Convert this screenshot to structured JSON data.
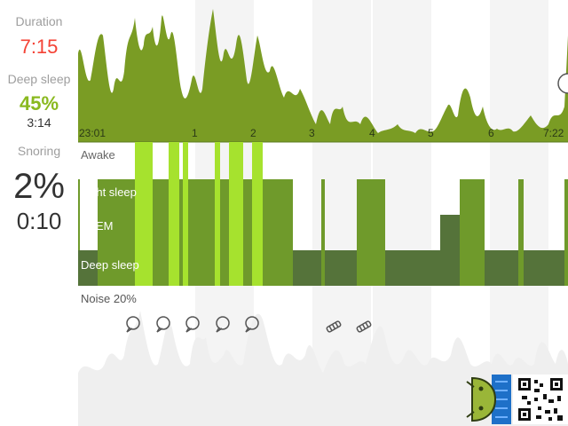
{
  "stats": {
    "duration_label": "Duration",
    "duration_value": "7:15",
    "deep_sleep_label": "Deep sleep",
    "deep_sleep_percent": "45%",
    "deep_sleep_time": "3:14",
    "snoring_label": "Snoring",
    "snoring_percent": "2%",
    "snoring_time": "0:10"
  },
  "time_axis": {
    "start": "23:01",
    "end": "7:22",
    "hours": [
      "1",
      "2",
      "3",
      "4",
      "5",
      "6"
    ]
  },
  "stage_labels": {
    "awake": "Awake",
    "light": "Light sleep",
    "rem": "~REM",
    "deep": "Deep sleep"
  },
  "noise": {
    "label": "Noise 20%",
    "talk_icon_count": 5,
    "snore_icon_count": 2
  },
  "colors": {
    "duration": "#f44336",
    "deep_sleep": "#8ab91f",
    "movement": "#7a9c24",
    "light_sleep": "#6f9a2b",
    "deep_sleep_bar": "#55733a",
    "awake": "#a6e22e",
    "noise": "#efefef",
    "snoring_text": "#333333"
  }
}
